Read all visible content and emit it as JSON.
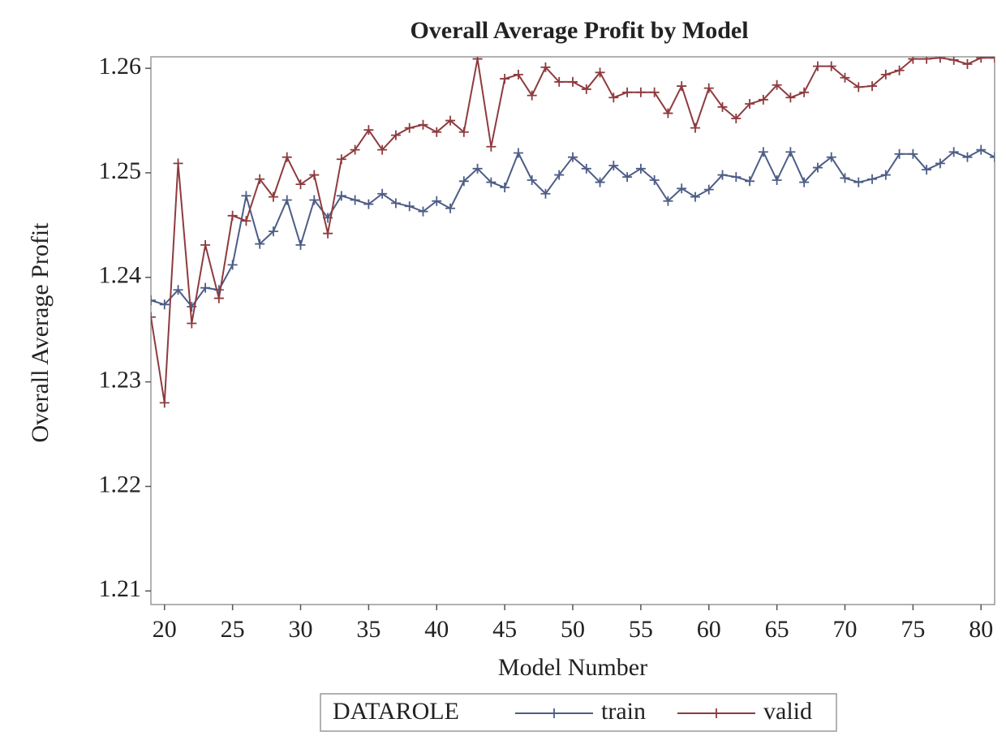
{
  "chart_data": {
    "type": "line",
    "title": "Overall Average Profit by Model",
    "xlabel": "Model Number",
    "ylabel": "Overall Average Profit",
    "legend_title": "DATAROLE",
    "x": [
      19,
      20,
      21,
      22,
      23,
      24,
      25,
      26,
      27,
      28,
      29,
      30,
      31,
      32,
      33,
      34,
      35,
      36,
      37,
      38,
      39,
      40,
      41,
      42,
      43,
      44,
      45,
      46,
      47,
      48,
      49,
      50,
      51,
      52,
      53,
      54,
      55,
      56,
      57,
      58,
      59,
      60,
      61,
      62,
      63,
      64,
      65,
      66,
      67,
      68,
      69,
      70,
      71,
      72,
      73,
      74,
      75,
      76,
      77,
      78,
      79,
      80,
      81
    ],
    "series": [
      {
        "name": "train",
        "color": "#4d5d86",
        "values": [
          1.2378,
          1.2374,
          1.2388,
          1.2372,
          1.239,
          1.2388,
          1.2412,
          1.2478,
          1.2432,
          1.2444,
          1.2474,
          1.2431,
          1.2474,
          1.2457,
          1.2478,
          1.2474,
          1.247,
          1.248,
          1.2471,
          1.2468,
          1.2463,
          1.2473,
          1.2466,
          1.2492,
          1.2504,
          1.2491,
          1.2486,
          1.2519,
          1.2493,
          1.248,
          1.2498,
          1.2515,
          1.2504,
          1.2491,
          1.2507,
          1.2496,
          1.2504,
          1.2493,
          1.2473,
          1.2485,
          1.2477,
          1.2484,
          1.2498,
          1.2496,
          1.2492,
          1.252,
          1.2493,
          1.252,
          1.2491,
          1.2505,
          1.2515,
          1.2495,
          1.2491,
          1.2494,
          1.2498,
          1.2518,
          1.2518,
          1.2503,
          1.2509,
          1.252,
          1.2515,
          1.2522,
          1.2515
        ]
      },
      {
        "name": "valid",
        "color": "#8e3b3e",
        "values": [
          1.2362,
          1.228,
          1.2509,
          1.2356,
          1.2431,
          1.238,
          1.2459,
          1.2454,
          1.2494,
          1.2477,
          1.2515,
          1.2489,
          1.2498,
          1.2442,
          1.2513,
          1.2522,
          1.2541,
          1.2522,
          1.2536,
          1.2543,
          1.2546,
          1.2539,
          1.255,
          1.2539,
          1.2609,
          1.2525,
          1.259,
          1.2594,
          1.2574,
          1.2601,
          1.2587,
          1.2587,
          1.258,
          1.2596,
          1.2572,
          1.2577,
          1.2577,
          1.2577,
          1.2557,
          1.2583,
          1.2543,
          1.2581,
          1.2563,
          1.2552,
          1.2566,
          1.257,
          1.2584,
          1.2572,
          1.2577,
          1.2602,
          1.2602,
          1.2591,
          1.2582,
          1.2583,
          1.2594,
          1.2598,
          1.2609,
          1.2609,
          1.261,
          1.2608,
          1.2604,
          1.261,
          1.261
        ]
      }
    ],
    "xlim": [
      19,
      81
    ],
    "ylim": [
      1.2087,
      1.2611
    ],
    "xticks": [
      20,
      25,
      30,
      35,
      40,
      45,
      50,
      55,
      60,
      65,
      70,
      75,
      80
    ],
    "yticks": [
      1.21,
      1.22,
      1.23,
      1.24,
      1.25,
      1.26
    ],
    "markers": true
  }
}
